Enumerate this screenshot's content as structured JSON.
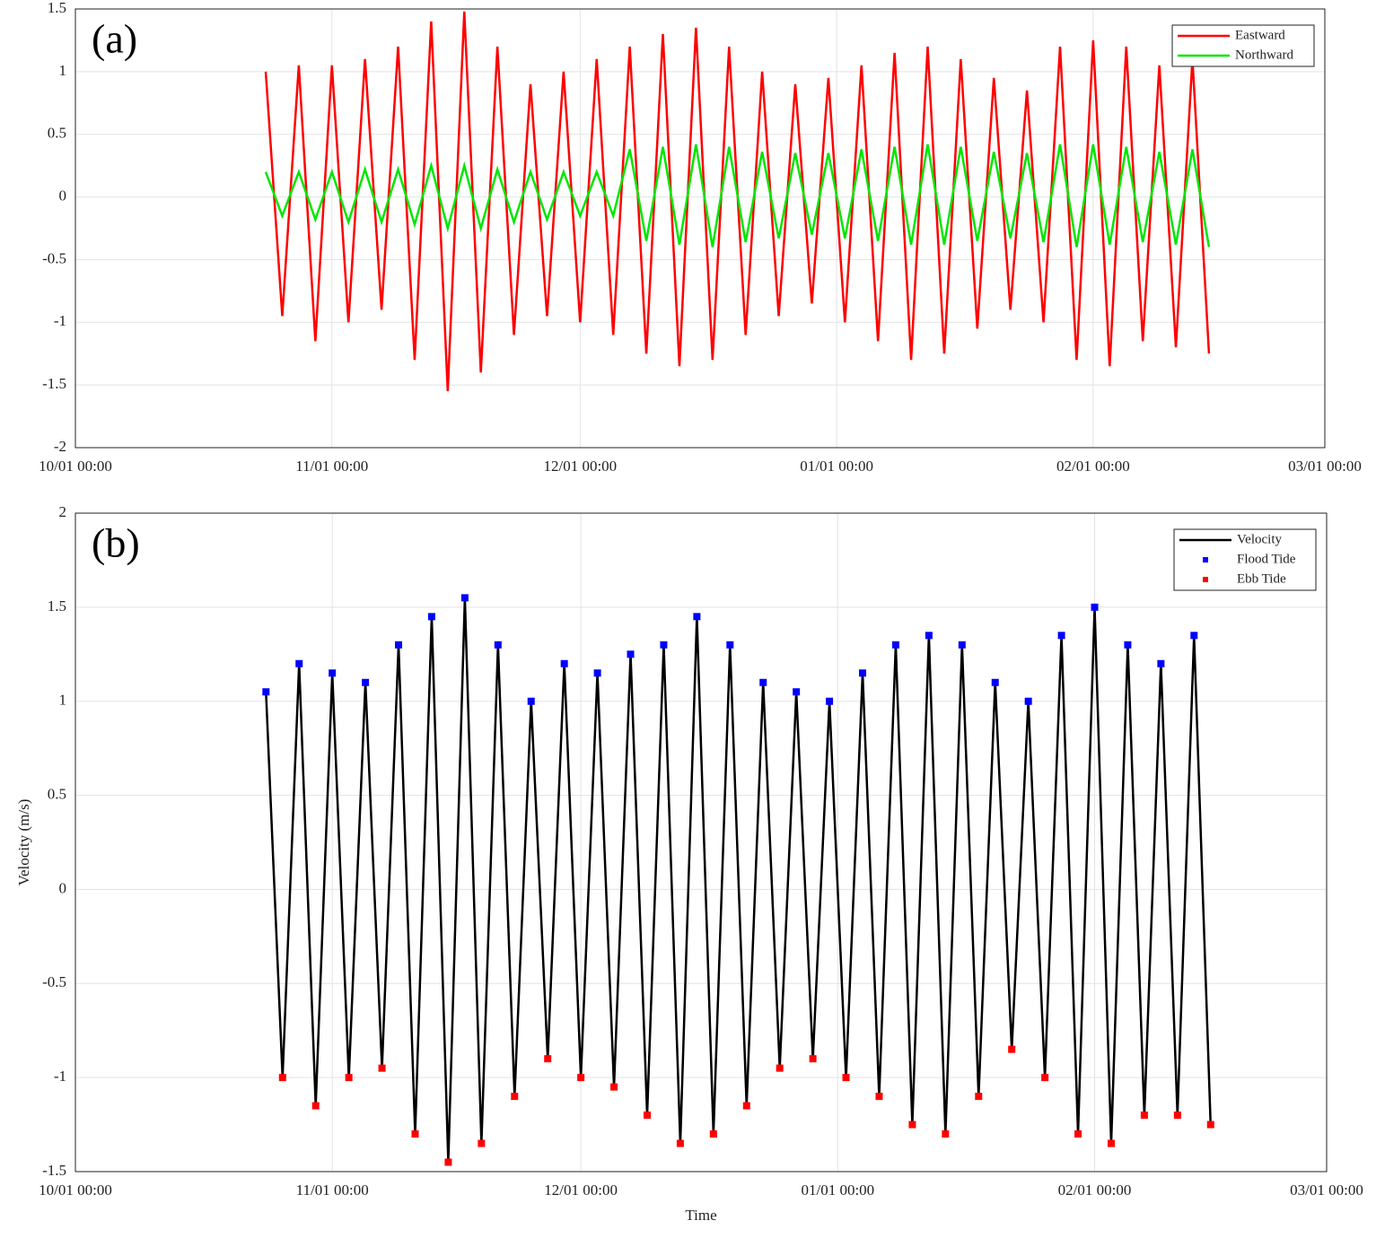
{
  "chart_data": [
    {
      "type": "line",
      "panel_label": "(a)",
      "xlim": [
        "10/01 00:00",
        "03/01 00:00"
      ],
      "xticks": [
        "10/01 00:00",
        "11/01 00:00",
        "12/01 00:00",
        "01/01 00:00",
        "02/01 00:00",
        "03/01 00:00"
      ],
      "ylim": [
        -2,
        1.5
      ],
      "yticks": [
        -2,
        -1.5,
        -1,
        -0.5,
        0,
        0.5,
        1,
        1.5
      ],
      "grid": true,
      "legend": "upper right",
      "x": [
        "10/24 00:00",
        "10/26 00:00",
        "10/28 00:00",
        "10/30 00:00",
        "11/01 00:00",
        "11/03 00:00",
        "11/05 00:00",
        "11/07 00:00",
        "11/09 00:00",
        "11/11 00:00",
        "11/13 00:00",
        "11/15 00:00",
        "11/17 00:00",
        "11/19 00:00",
        "11/21 00:00",
        "11/23 00:00",
        "11/25 00:00",
        "11/27 00:00",
        "11/29 00:00",
        "12/01 00:00",
        "12/03 00:00",
        "12/05 00:00",
        "12/07 00:00",
        "12/09 00:00",
        "12/11 00:00",
        "12/13 00:00",
        "12/15 00:00",
        "12/17 00:00",
        "12/19 00:00",
        "12/21 00:00",
        "12/23 00:00",
        "12/25 00:00",
        "12/27 00:00",
        "12/29 00:00",
        "12/31 00:00",
        "01/02 00:00",
        "01/04 00:00",
        "01/06 00:00",
        "01/08 00:00",
        "01/10 00:00",
        "01/12 00:00",
        "01/14 00:00",
        "01/16 00:00",
        "01/18 00:00",
        "01/20 00:00",
        "01/22 00:00",
        "01/24 00:00",
        "01/26 00:00",
        "01/28 00:00",
        "01/30 00:00",
        "02/01 00:00",
        "02/03 00:00",
        "02/05 00:00",
        "02/07 00:00",
        "02/09 00:00",
        "02/11 00:00",
        "02/13 00:00",
        "02/15 00:00"
      ],
      "series": [
        {
          "name": "Eastward",
          "type": "line",
          "color": "#ff0000",
          "values": [
            1.0,
            -0.95,
            1.05,
            -1.15,
            1.05,
            -1.0,
            1.1,
            -0.9,
            1.2,
            -1.3,
            1.4,
            -1.55,
            1.48,
            -1.4,
            1.2,
            -1.1,
            0.9,
            -0.95,
            1.0,
            -1.0,
            1.1,
            -1.1,
            1.2,
            -1.25,
            1.3,
            -1.35,
            1.35,
            -1.3,
            1.2,
            -1.1,
            1.0,
            -0.95,
            0.9,
            -0.85,
            0.95,
            -1.0,
            1.05,
            -1.15,
            1.15,
            -1.3,
            1.2,
            -1.25,
            1.1,
            -1.05,
            0.95,
            -0.9,
            0.85,
            -1.0,
            1.2,
            -1.3,
            1.25,
            -1.35,
            1.2,
            -1.15,
            1.05,
            -1.2,
            1.1,
            -1.25
          ]
        },
        {
          "name": "Northward",
          "type": "line",
          "color": "#00e600",
          "values": [
            0.2,
            -0.15,
            0.2,
            -0.18,
            0.2,
            -0.2,
            0.22,
            -0.2,
            0.22,
            -0.22,
            0.25,
            -0.25,
            0.25,
            -0.25,
            0.22,
            -0.2,
            0.2,
            -0.18,
            0.2,
            -0.15,
            0.2,
            -0.15,
            0.38,
            -0.35,
            0.4,
            -0.38,
            0.42,
            -0.4,
            0.4,
            -0.36,
            0.36,
            -0.33,
            0.35,
            -0.3,
            0.35,
            -0.33,
            0.38,
            -0.35,
            0.4,
            -0.38,
            0.42,
            -0.38,
            0.4,
            -0.35,
            0.36,
            -0.33,
            0.35,
            -0.36,
            0.42,
            -0.4,
            0.42,
            -0.38,
            0.4,
            -0.36,
            0.36,
            -0.38,
            0.38,
            -0.4
          ]
        }
      ]
    },
    {
      "type": "line",
      "panel_label": "(b)",
      "xlabel": "Time",
      "ylabel": "Velocity (m/s)",
      "xlim": [
        "10/01 00:00",
        "03/01 00:00"
      ],
      "xticks": [
        "10/01 00:00",
        "11/01 00:00",
        "12/01 00:00",
        "01/01 00:00",
        "02/01 00:00",
        "03/01 00:00"
      ],
      "ylim": [
        -1.5,
        2
      ],
      "yticks": [
        -1.5,
        -1,
        -0.5,
        0,
        0.5,
        1,
        1.5,
        2
      ],
      "grid": true,
      "legend": "upper right",
      "x": [
        "10/24 00:00",
        "10/26 00:00",
        "10/28 00:00",
        "10/30 00:00",
        "11/01 00:00",
        "11/03 00:00",
        "11/05 00:00",
        "11/07 00:00",
        "11/09 00:00",
        "11/11 00:00",
        "11/13 00:00",
        "11/15 00:00",
        "11/17 00:00",
        "11/19 00:00",
        "11/21 00:00",
        "11/23 00:00",
        "11/25 00:00",
        "11/27 00:00",
        "11/29 00:00",
        "12/01 00:00",
        "12/03 00:00",
        "12/05 00:00",
        "12/07 00:00",
        "12/09 00:00",
        "12/11 00:00",
        "12/13 00:00",
        "12/15 00:00",
        "12/17 00:00",
        "12/19 00:00",
        "12/21 00:00",
        "12/23 00:00",
        "12/25 00:00",
        "12/27 00:00",
        "12/29 00:00",
        "12/31 00:00",
        "01/02 00:00",
        "01/04 00:00",
        "01/06 00:00",
        "01/08 00:00",
        "01/10 00:00",
        "01/12 00:00",
        "01/14 00:00",
        "01/16 00:00",
        "01/18 00:00",
        "01/20 00:00",
        "01/22 00:00",
        "01/24 00:00",
        "01/26 00:00",
        "01/28 00:00",
        "01/30 00:00",
        "02/01 00:00",
        "02/03 00:00",
        "02/05 00:00",
        "02/07 00:00",
        "02/09 00:00",
        "02/11 00:00",
        "02/13 00:00",
        "02/15 00:00"
      ],
      "series": [
        {
          "name": "Velocity",
          "type": "line",
          "color": "#000000",
          "values": [
            1.05,
            -1.0,
            1.2,
            -1.15,
            1.15,
            -1.0,
            1.1,
            -0.95,
            1.3,
            -1.3,
            1.45,
            -1.45,
            1.55,
            -1.35,
            1.3,
            -1.1,
            1.0,
            -0.9,
            1.2,
            -1.0,
            1.15,
            -1.05,
            1.25,
            -1.2,
            1.3,
            -1.35,
            1.45,
            -1.3,
            1.3,
            -1.15,
            1.1,
            -0.95,
            1.05,
            -0.9,
            1.0,
            -1.0,
            1.15,
            -1.1,
            1.3,
            -1.25,
            1.35,
            -1.3,
            1.3,
            -1.1,
            1.1,
            -0.85,
            1.0,
            -1.0,
            1.35,
            -1.3,
            1.5,
            -1.35,
            1.3,
            -1.2,
            1.2,
            -1.2,
            1.35,
            -1.25
          ]
        },
        {
          "name": "Flood Tide",
          "type": "scatter",
          "color": "#0000ff",
          "values": [
            1.05,
            null,
            1.2,
            null,
            1.15,
            null,
            1.1,
            null,
            1.3,
            null,
            1.45,
            null,
            1.55,
            null,
            1.3,
            null,
            1.0,
            null,
            1.2,
            null,
            1.15,
            null,
            1.25,
            null,
            1.3,
            null,
            1.45,
            null,
            1.3,
            null,
            1.1,
            null,
            1.05,
            null,
            1.0,
            null,
            1.15,
            null,
            1.3,
            null,
            1.35,
            null,
            1.3,
            null,
            1.1,
            null,
            1.0,
            null,
            1.35,
            null,
            1.5,
            null,
            1.3,
            null,
            1.2,
            null,
            1.35,
            null
          ]
        },
        {
          "name": "Ebb Tide",
          "type": "scatter",
          "color": "#ff0000",
          "values": [
            null,
            -1.0,
            null,
            -1.15,
            null,
            -1.0,
            null,
            -0.95,
            null,
            -1.3,
            null,
            -1.45,
            null,
            -1.35,
            null,
            -1.1,
            null,
            -0.9,
            null,
            -1.0,
            null,
            -1.05,
            null,
            -1.2,
            null,
            -1.35,
            null,
            -1.3,
            null,
            -1.15,
            null,
            -0.95,
            null,
            -0.9,
            null,
            -1.0,
            null,
            -1.1,
            null,
            -1.25,
            null,
            -1.3,
            null,
            -1.1,
            null,
            -0.85,
            null,
            -1.0,
            null,
            -1.3,
            null,
            -1.35,
            null,
            -1.2,
            null,
            -1.2,
            null,
            -1.25
          ]
        }
      ]
    }
  ]
}
